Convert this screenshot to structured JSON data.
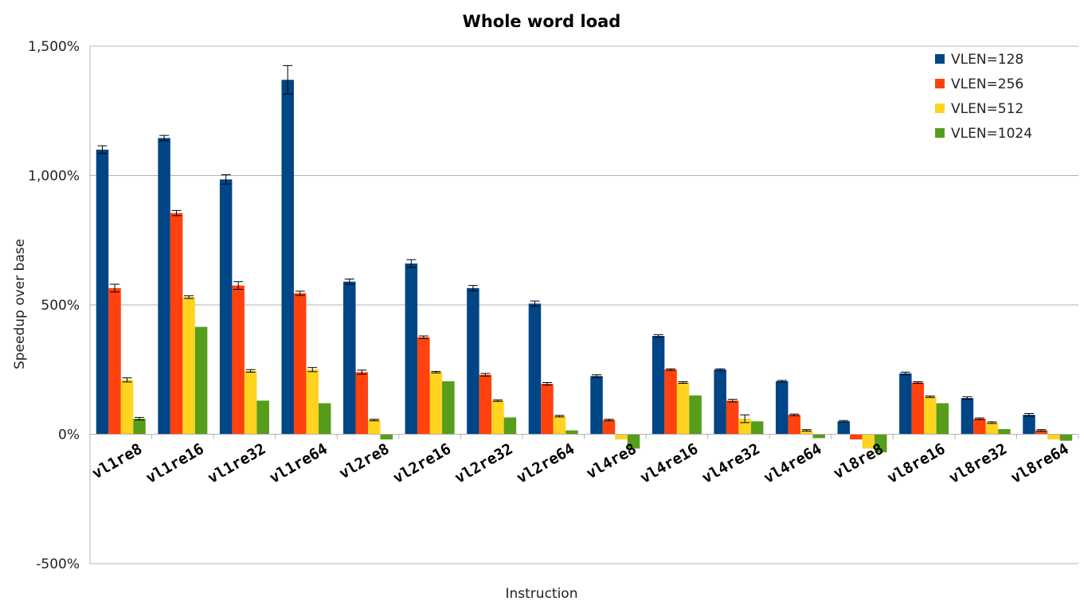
{
  "chart_data": {
    "type": "bar",
    "title": "Whole word load",
    "xlabel": "Instruction",
    "ylabel": "Speedup over base",
    "ylim": [
      -500,
      1500
    ],
    "yticks": [
      {
        "value": 1500,
        "label": "1,500%",
        "color": "#222222"
      },
      {
        "value": 1000,
        "label": "1,000%",
        "color": "#222222"
      },
      {
        "value": 500,
        "label": "500%",
        "color": "#222222"
      },
      {
        "value": 0,
        "label": "0%",
        "color": "#222222"
      },
      {
        "value": -500,
        "label": "-500%",
        "color": "#e3191b"
      }
    ],
    "grid": true,
    "legend_position": "top-right",
    "categories": [
      "vl1re8",
      "vl1re16",
      "vl1re32",
      "vl1re64",
      "vl2re8",
      "vl2re16",
      "vl2re32",
      "vl2re64",
      "vl4re8",
      "vl4re16",
      "vl4re32",
      "vl4re64",
      "vl8re8",
      "vl8re16",
      "vl8re32",
      "vl8re64"
    ],
    "series": [
      {
        "name": "VLEN=128",
        "color": "#004586",
        "values": [
          1100,
          1145,
          985,
          1370,
          590,
          660,
          565,
          505,
          225,
          380,
          250,
          205,
          50,
          235,
          140,
          75
        ],
        "errors": [
          15,
          10,
          18,
          55,
          10,
          15,
          10,
          10,
          5,
          5,
          3,
          3,
          3,
          5,
          5,
          5
        ]
      },
      {
        "name": "VLEN=256",
        "color": "#ff420e",
        "values": [
          565,
          855,
          575,
          545,
          240,
          375,
          230,
          195,
          55,
          250,
          130,
          75,
          -20,
          200,
          60,
          15
        ],
        "errors": [
          15,
          10,
          15,
          8,
          8,
          5,
          5,
          5,
          3,
          3,
          5,
          3,
          3,
          3,
          3,
          3
        ]
      },
      {
        "name": "VLEN=512",
        "color": "#ffd320",
        "values": [
          210,
          530,
          245,
          250,
          55,
          240,
          130,
          70,
          -20,
          200,
          60,
          15,
          -55,
          145,
          45,
          -20
        ],
        "errors": [
          8,
          5,
          5,
          8,
          3,
          3,
          3,
          3,
          3,
          3,
          15,
          3,
          3,
          3,
          3,
          3
        ]
      },
      {
        "name": "VLEN=1024",
        "color": "#579d1c",
        "values": [
          60,
          415,
          130,
          120,
          -20,
          205,
          65,
          15,
          -55,
          150,
          50,
          -15,
          -70,
          120,
          20,
          -25
        ],
        "errors": [
          5,
          0,
          0,
          0,
          0,
          0,
          0,
          0,
          0,
          0,
          0,
          0,
          0,
          0,
          0,
          0
        ]
      }
    ]
  }
}
